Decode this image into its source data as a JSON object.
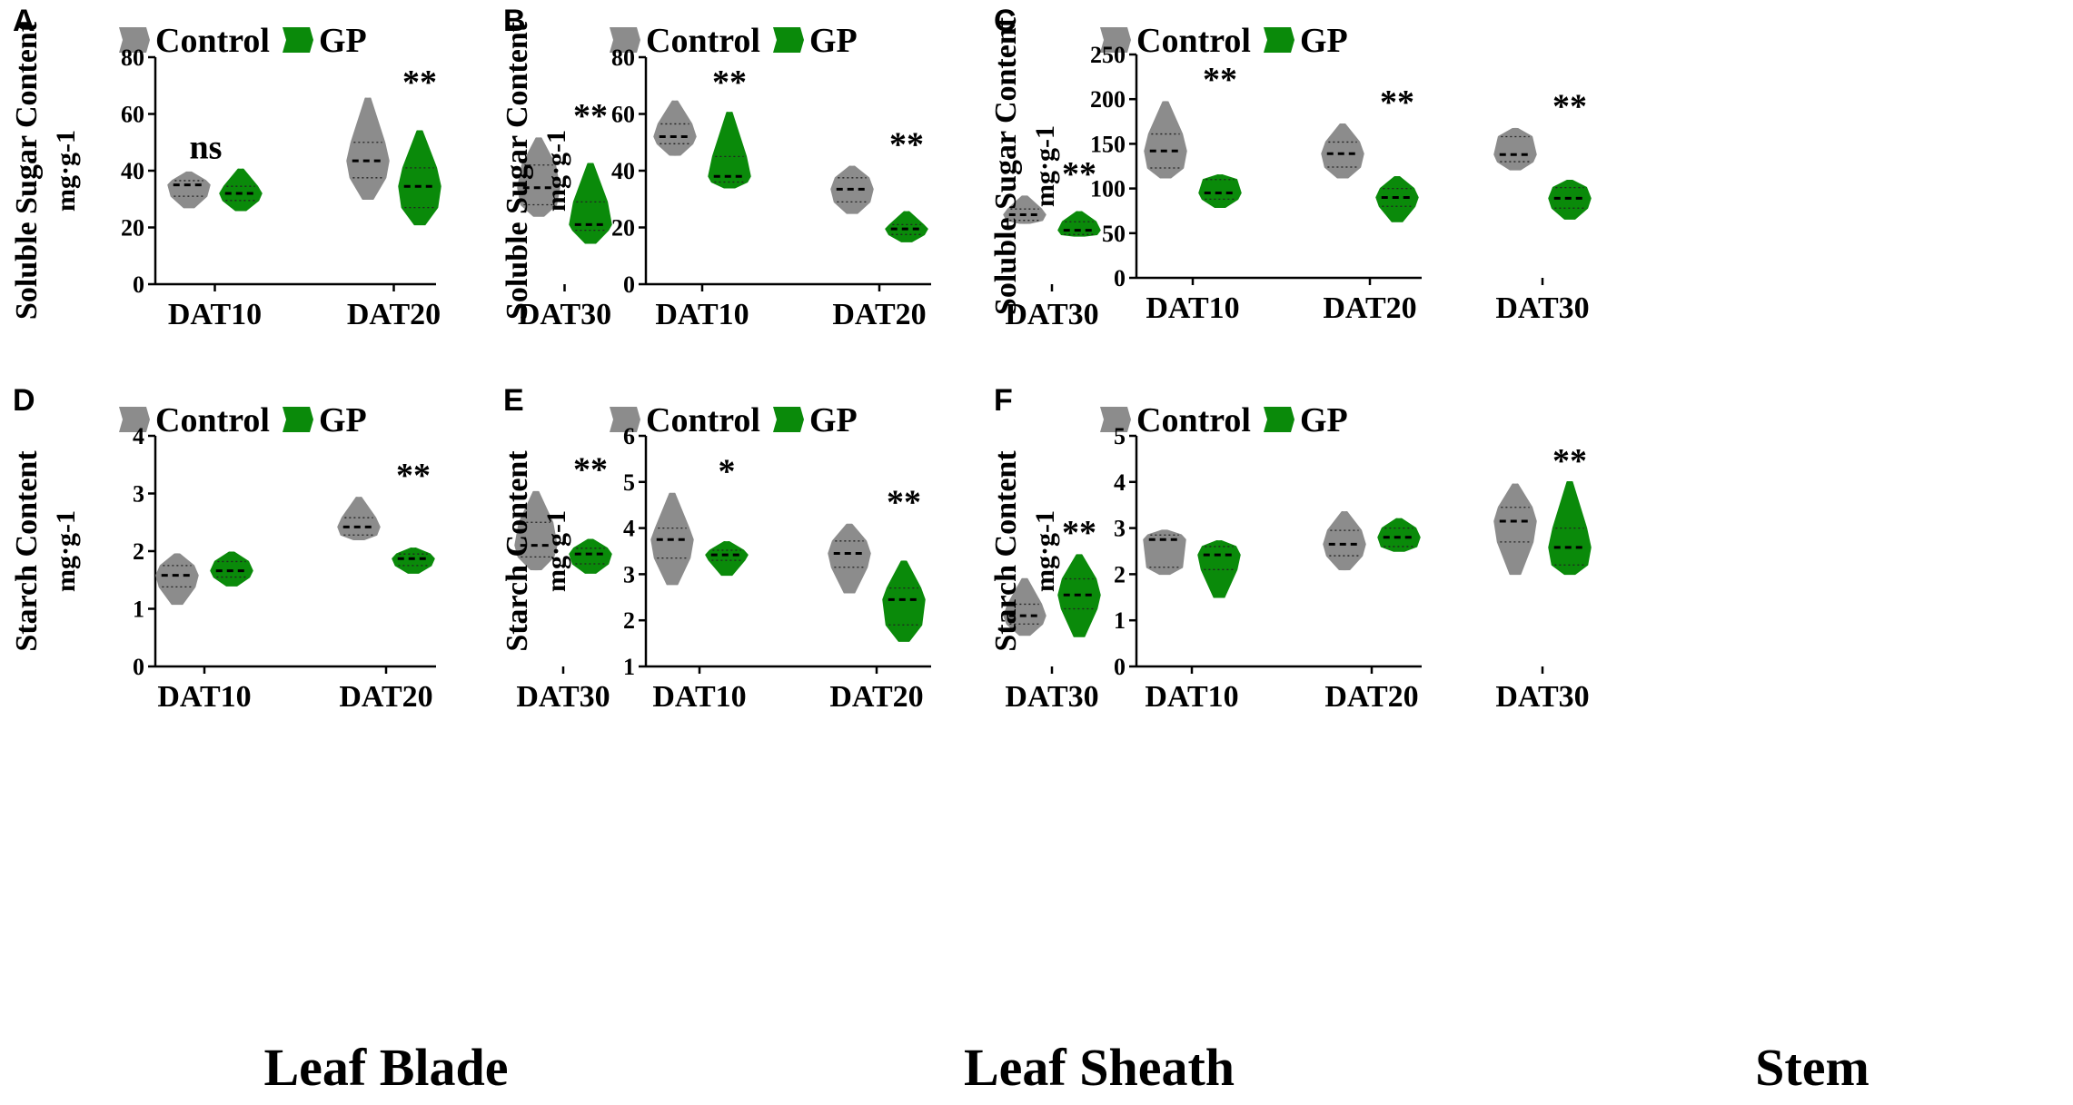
{
  "colors": {
    "control": "#8c8c8c",
    "gp": "#0a8a0a",
    "axis": "#000000"
  },
  "column_titles": [
    "Leaf Blade",
    "Leaf Sheath",
    "Stem"
  ],
  "chart_data": [
    {
      "panel": "A",
      "type": "violin",
      "ylabel": "Soluble Sugar Content",
      "yunit": "mg·g-1",
      "ylim": [
        0,
        80
      ],
      "yticks": [
        0,
        20,
        40,
        60,
        80
      ],
      "categories": [
        "DAT10",
        "DAT20",
        "DAT30"
      ],
      "legend": [
        "Control",
        "GP"
      ],
      "significance": [
        "ns",
        "**",
        "**"
      ],
      "series": [
        {
          "name": "Control",
          "median": [
            35,
            43.5,
            34
          ],
          "q1": [
            31,
            37.5,
            28
          ],
          "q3": [
            36.5,
            50,
            42
          ],
          "min": [
            27,
            30,
            24
          ],
          "max": [
            39.5,
            65.5,
            51.5
          ]
        },
        {
          "name": "GP",
          "median": [
            32,
            34.5,
            21
          ],
          "q1": [
            29.5,
            27,
            19
          ],
          "q3": [
            34.5,
            41,
            29
          ],
          "min": [
            26,
            21,
            14.5
          ],
          "max": [
            40.5,
            54,
            42.5
          ]
        }
      ]
    },
    {
      "panel": "B",
      "type": "violin",
      "ylabel": "Soluble Sugar Content",
      "yunit": "mg·g-1",
      "ylim": [
        0,
        80
      ],
      "yticks": [
        0,
        20,
        40,
        60,
        80
      ],
      "categories": [
        "DAT10",
        "DAT20",
        "DAT30"
      ],
      "legend": [
        "Control",
        "GP"
      ],
      "significance": [
        "**",
        "**",
        "**"
      ],
      "series": [
        {
          "name": "Control",
          "median": [
            52,
            33.5,
            24.5
          ],
          "q1": [
            49.5,
            29,
            22.5
          ],
          "q3": [
            56.5,
            37.5,
            26.5
          ],
          "min": [
            45.5,
            25,
            21.5
          ],
          "max": [
            64.5,
            41.5,
            31
          ]
        },
        {
          "name": "GP",
          "median": [
            38,
            19.5,
            19
          ],
          "q1": [
            36,
            17.5,
            17.5
          ],
          "q3": [
            45,
            21,
            22
          ],
          "min": [
            34,
            15,
            17
          ],
          "max": [
            60.5,
            25.5,
            25.5
          ]
        }
      ]
    },
    {
      "panel": "C",
      "type": "violin",
      "ylabel": "Soluble Sugar Content",
      "yunit": "mg·g-1",
      "ylim": [
        0,
        250
      ],
      "yticks": [
        0,
        50,
        100,
        150,
        200,
        250
      ],
      "categories": [
        "DAT10",
        "DAT20",
        "DAT30"
      ],
      "legend": [
        "Control",
        "GP"
      ],
      "significance": [
        "**",
        "**",
        "**"
      ],
      "series": [
        {
          "name": "Control",
          "median": [
            142,
            139,
            138
          ],
          "q1": [
            123,
            124,
            130
          ],
          "q3": [
            161,
            152,
            158
          ],
          "min": [
            112,
            112,
            121
          ],
          "max": [
            197,
            172,
            167
          ]
        },
        {
          "name": "GP",
          "median": [
            95,
            90,
            89
          ],
          "q1": [
            88,
            80,
            78
          ],
          "q3": [
            110,
            100,
            101
          ],
          "min": [
            79,
            63,
            66
          ],
          "max": [
            115,
            113,
            109
          ]
        }
      ]
    },
    {
      "panel": "D",
      "type": "violin",
      "ylabel": "Starch Content",
      "yunit": "mg·g-1",
      "ylim": [
        0,
        4
      ],
      "yticks": [
        0,
        1,
        2,
        3,
        4
      ],
      "categories": [
        "DAT10",
        "DAT20",
        "DAT30"
      ],
      "legend": [
        "Control",
        "GP"
      ],
      "significance": [
        "",
        "**",
        "**"
      ],
      "series": [
        {
          "name": "Control",
          "median": [
            1.58,
            2.42,
            2.1
          ],
          "q1": [
            1.38,
            2.28,
            1.9
          ],
          "q3": [
            1.75,
            2.58,
            2.5
          ],
          "min": [
            1.08,
            2.2,
            1.68
          ],
          "max": [
            1.95,
            2.93,
            3.03
          ]
        },
        {
          "name": "GP",
          "median": [
            1.66,
            1.87,
            1.95
          ],
          "q1": [
            1.55,
            1.75,
            1.78
          ],
          "q3": [
            1.82,
            1.95,
            2.05
          ],
          "min": [
            1.4,
            1.62,
            1.62
          ],
          "max": [
            1.98,
            2.05,
            2.2
          ]
        }
      ]
    },
    {
      "panel": "E",
      "type": "violin",
      "ylabel": "Starch Content",
      "yunit": "mg·g-1",
      "ylim": [
        1,
        6
      ],
      "yticks": [
        1,
        2,
        3,
        4,
        5,
        6
      ],
      "categories": [
        "DAT10",
        "DAT20",
        "DAT30"
      ],
      "legend": [
        "Control",
        "GP"
      ],
      "significance": [
        "*",
        "**",
        "**"
      ],
      "series": [
        {
          "name": "Control",
          "median": [
            3.75,
            3.45,
            2.1
          ],
          "q1": [
            3.35,
            3.15,
            1.92
          ],
          "q3": [
            4.0,
            3.72,
            2.35
          ],
          "min": [
            2.78,
            2.6,
            1.68
          ],
          "max": [
            4.75,
            4.08,
            2.9
          ]
        },
        {
          "name": "GP",
          "median": [
            3.42,
            2.45,
            2.55
          ],
          "q1": [
            3.3,
            1.9,
            2.25
          ],
          "q3": [
            3.52,
            2.7,
            2.9
          ],
          "min": [
            2.98,
            1.55,
            1.65
          ],
          "max": [
            3.7,
            3.28,
            3.42
          ]
        }
      ]
    },
    {
      "panel": "F",
      "type": "violin",
      "ylabel": "Starch Content",
      "yunit": "mg·g-1",
      "ylim": [
        0,
        5
      ],
      "yticks": [
        0,
        1,
        2,
        3,
        4,
        5
      ],
      "categories": [
        "DAT10",
        "DAT20",
        "DAT30"
      ],
      "legend": [
        "Control",
        "GP"
      ],
      "significance": [
        "",
        "",
        "**"
      ],
      "series": [
        {
          "name": "Control",
          "median": [
            2.75,
            2.65,
            3.15
          ],
          "q1": [
            2.15,
            2.4,
            2.7
          ],
          "q3": [
            2.85,
            2.95,
            3.45
          ],
          "min": [
            2.0,
            2.1,
            2.0
          ],
          "max": [
            2.95,
            3.35,
            3.95
          ]
        },
        {
          "name": "GP",
          "median": [
            2.42,
            2.8,
            2.58
          ],
          "q1": [
            2.1,
            2.6,
            2.2
          ],
          "q3": [
            2.6,
            3.0,
            3.0
          ],
          "min": [
            1.5,
            2.5,
            2.0
          ],
          "max": [
            2.72,
            3.2,
            4.0
          ]
        }
      ]
    }
  ]
}
